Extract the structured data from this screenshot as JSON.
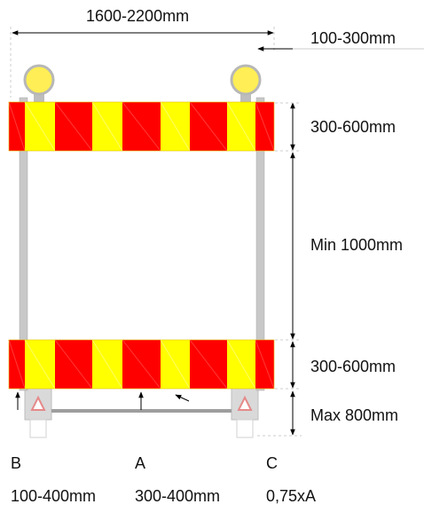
{
  "dimensions": {
    "overall_width": "1600-2200mm",
    "overhang": "100-300mm",
    "top_board_height": "300-600mm",
    "gap_height": "Min 1000mm",
    "bottom_board_height": "300-600mm",
    "base_height": "Max 800mm"
  },
  "markers": {
    "b": "B",
    "a": "A",
    "c": "C"
  },
  "marker_values": {
    "b": "100-400mm",
    "a": "300-400mm",
    "c": "0,75xA"
  },
  "colors": {
    "red": "#ff0000",
    "yellow": "#ffff00",
    "lamp": "#ffee55",
    "post": "#c8c8c8",
    "dimension_line": "#000000"
  },
  "icons": {
    "lamp": "warning-lamp-icon",
    "base": "foot-block-icon"
  }
}
